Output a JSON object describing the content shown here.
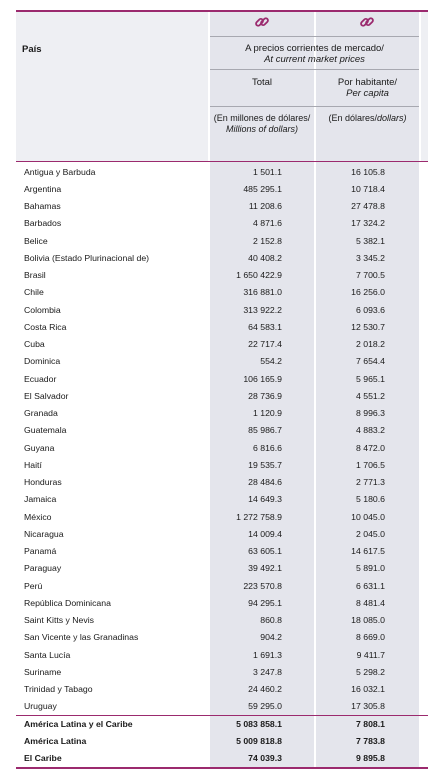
{
  "header": {
    "country_label": "País",
    "group_title_es": "A precios corrientes de mercado/",
    "group_title_en": "At current market prices",
    "col1_title": "Total",
    "col2_title_es": "Por habitante/",
    "col2_title_en": "Per capita",
    "col1_unit_es": "(En millones de dólares/",
    "col1_unit_en": "Millions of dollars)",
    "col2_unit_es": "(En dólares/",
    "col2_unit_en": "dollars)",
    "icon": "link-icon",
    "accent_color": "#9b2a6e"
  },
  "rows": [
    {
      "country": "Antigua y Barbuda",
      "total": "1 501.1",
      "per_capita": "16 105.8"
    },
    {
      "country": "Argentina",
      "total": "485 295.1",
      "per_capita": "10 718.4"
    },
    {
      "country": "Bahamas",
      "total": "11 208.6",
      "per_capita": "27 478.8"
    },
    {
      "country": "Barbados",
      "total": "4 871.6",
      "per_capita": "17 324.2"
    },
    {
      "country": "Belice",
      "total": "2 152.8",
      "per_capita": "5 382.1"
    },
    {
      "country": "Bolivia (Estado Plurinacional de)",
      "total": "40 408.2",
      "per_capita": "3 345.2"
    },
    {
      "country": "Brasil",
      "total": "1 650 422.9",
      "per_capita": "7 700.5"
    },
    {
      "country": "Chile",
      "total": "316 881.0",
      "per_capita": "16 256.0"
    },
    {
      "country": "Colombia",
      "total": "313 922.2",
      "per_capita": "6 093.6"
    },
    {
      "country": "Costa Rica",
      "total": "64 583.1",
      "per_capita": "12 530.7"
    },
    {
      "country": "Cuba",
      "total": "22 717.4",
      "per_capita": "2 018.2"
    },
    {
      "country": "Dominica",
      "total": "554.2",
      "per_capita": "7 654.4"
    },
    {
      "country": "Ecuador",
      "total": "106 165.9",
      "per_capita": "5 965.1"
    },
    {
      "country": "El Salvador",
      "total": "28 736.9",
      "per_capita": "4 551.2"
    },
    {
      "country": "Granada",
      "total": "1 120.9",
      "per_capita": "8 996.3"
    },
    {
      "country": "Guatemala",
      "total": "85 986.7",
      "per_capita": "4 883.2"
    },
    {
      "country": "Guyana",
      "total": "6 816.6",
      "per_capita": "8 472.0"
    },
    {
      "country": "Haití",
      "total": "19 535.7",
      "per_capita": "1 706.5"
    },
    {
      "country": "Honduras",
      "total": "28 484.6",
      "per_capita": "2 771.3"
    },
    {
      "country": "Jamaica",
      "total": "14 649.3",
      "per_capita": "5 180.6"
    },
    {
      "country": "México",
      "total": "1 272 758.9",
      "per_capita": "10 045.0"
    },
    {
      "country": "Nicaragua",
      "total": "14 009.4",
      "per_capita": "2 045.0"
    },
    {
      "country": "Panamá",
      "total": "63 605.1",
      "per_capita": "14 617.5"
    },
    {
      "country": "Paraguay",
      "total": "39 492.1",
      "per_capita": "5 891.0"
    },
    {
      "country": "Perú",
      "total": "223 570.8",
      "per_capita": "6 631.1"
    },
    {
      "country": "República Dominicana",
      "total": "94 295.1",
      "per_capita": "8 481.4"
    },
    {
      "country": "Saint Kitts y Nevis",
      "total": "860.8",
      "per_capita": "18 085.0"
    },
    {
      "country": "San Vicente y las Granadinas",
      "total": "904.2",
      "per_capita": "8 669.0"
    },
    {
      "country": "Santa Lucía",
      "total": "1 691.3",
      "per_capita": "9 411.7"
    },
    {
      "country": "Suriname",
      "total": "3 247.8",
      "per_capita": "5 298.2"
    },
    {
      "country": "Trinidad y Tabago",
      "total": "24 460.2",
      "per_capita": "16 032.1"
    },
    {
      "country": "Uruguay",
      "total": "59 295.0",
      "per_capita": "17 305.8"
    }
  ],
  "totals": [
    {
      "country": "América Latina y el Caribe",
      "total": "5 083 858.1",
      "per_capita": "7 808.1"
    },
    {
      "country": "América Latina",
      "total": "5 009 818.8",
      "per_capita": "7 783.8"
    },
    {
      "country": "El Caribe",
      "total": "74 039.3",
      "per_capita": "9 895.8"
    }
  ]
}
